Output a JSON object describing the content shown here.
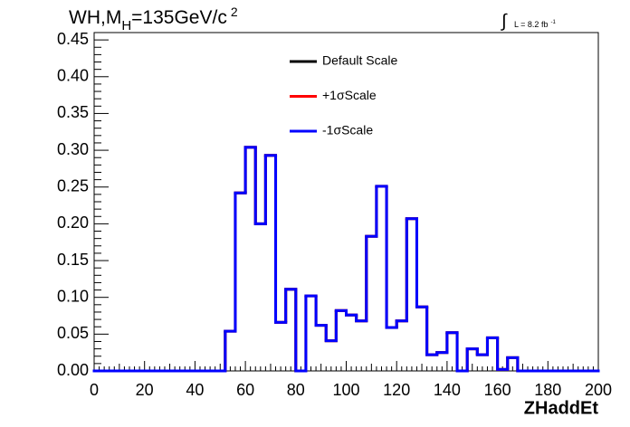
{
  "chart_data": {
    "type": "histogram",
    "title": {
      "main": "WH,M",
      "sub": "H",
      "rest": "=135GeV/c",
      "sup": "2"
    },
    "annotation": {
      "integral": "∫",
      "text": "L = 8.2 fb",
      "sup": "-1"
    },
    "x_label": "ZHaddEt",
    "bins": [
      0,
      4,
      8,
      12,
      16,
      20,
      24,
      28,
      32,
      36,
      40,
      44,
      48,
      52,
      56,
      60,
      64,
      68,
      72,
      76,
      80,
      84,
      88,
      92,
      96,
      100,
      104,
      108,
      112,
      116,
      120,
      124,
      128,
      132,
      136,
      140,
      144,
      148,
      152,
      156,
      160,
      164,
      168,
      172,
      176,
      180,
      184,
      188,
      192,
      196,
      200
    ],
    "series": [
      {
        "name": "Default Scale",
        "color": "#000000",
        "values": [
          0,
          0,
          0,
          0,
          0,
          0,
          0,
          0,
          0,
          0,
          0,
          0,
          0,
          0.054,
          0.242,
          0.304,
          0.2,
          0.293,
          0.066,
          0.111,
          0,
          0.102,
          0.062,
          0.041,
          0.082,
          0.076,
          0.068,
          0.183,
          0.251,
          0.059,
          0.068,
          0.207,
          0.087,
          0.022,
          0.025,
          0.052,
          0,
          0.03,
          0.022,
          0.045,
          0.002,
          0.018,
          0,
          0,
          0,
          0,
          0,
          0,
          0,
          0
        ]
      },
      {
        "name": "+1σScale",
        "color": "#ff0000",
        "values": [
          0,
          0,
          0,
          0,
          0,
          0,
          0,
          0,
          0,
          0,
          0,
          0,
          0,
          0.054,
          0.242,
          0.304,
          0.2,
          0.293,
          0.066,
          0.111,
          0,
          0.102,
          0.062,
          0.041,
          0.082,
          0.076,
          0.068,
          0.183,
          0.251,
          0.059,
          0.068,
          0.207,
          0.087,
          0.022,
          0.025,
          0.052,
          0,
          0.03,
          0.022,
          0.045,
          0.002,
          0.018,
          0,
          0,
          0,
          0,
          0,
          0,
          0,
          0
        ]
      },
      {
        "name": "-1σScale",
        "color": "#0000ff",
        "values": [
          0,
          0,
          0,
          0,
          0,
          0,
          0,
          0,
          0,
          0,
          0,
          0,
          0,
          0.054,
          0.242,
          0.304,
          0.2,
          0.293,
          0.066,
          0.111,
          0,
          0.102,
          0.062,
          0.041,
          0.082,
          0.076,
          0.068,
          0.183,
          0.251,
          0.059,
          0.068,
          0.207,
          0.087,
          0.022,
          0.025,
          0.052,
          0,
          0.03,
          0.022,
          0.045,
          0.002,
          0.018,
          0,
          0,
          0,
          0,
          0,
          0,
          0,
          0
        ]
      }
    ],
    "xlim": [
      0,
      200
    ],
    "xticks": [
      0,
      20,
      40,
      60,
      80,
      100,
      120,
      140,
      160,
      180,
      200
    ],
    "ylim": [
      0,
      0.46
    ],
    "yticks": [
      {
        "value": 0,
        "label": "0.00"
      },
      {
        "value": 0.05,
        "label": "0.05"
      },
      {
        "value": 0.1,
        "label": "0.10"
      },
      {
        "value": 0.15,
        "label": "0.15"
      },
      {
        "value": 0.2,
        "label": "0.20"
      },
      {
        "value": 0.25,
        "label": "0.25"
      },
      {
        "value": 0.3,
        "label": "0.30"
      },
      {
        "value": 0.35,
        "label": "0.35"
      },
      {
        "value": 0.4,
        "label": "0.40"
      },
      {
        "value": 0.45,
        "label": "0.45"
      }
    ]
  }
}
